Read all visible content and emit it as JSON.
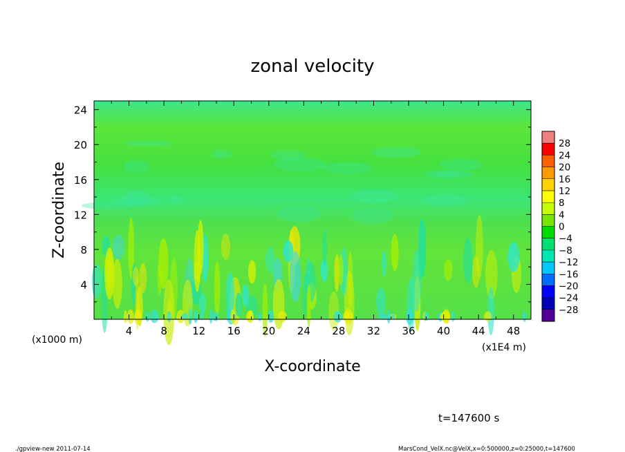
{
  "chart_data": {
    "type": "heatmap",
    "title": "zonal velocity",
    "xlabel": "X-coordinate",
    "ylabel": "Z-coordinate",
    "x_unit_left": "(x1000 m)",
    "x_unit_right": "(x1E4 m)",
    "x_ticks": [
      "4",
      "8",
      "12",
      "16",
      "20",
      "24",
      "28",
      "32",
      "36",
      "40",
      "44",
      "48"
    ],
    "y_ticks": [
      "4",
      "8",
      "12",
      "16",
      "20",
      "24"
    ],
    "xlim": [
      0,
      50
    ],
    "ylim": [
      0,
      25
    ],
    "colorbar": {
      "labels": [
        "28",
        "24",
        "20",
        "16",
        "12",
        "8",
        "4",
        "0",
        "−4",
        "−8",
        "−12",
        "−16",
        "−20",
        "−24",
        "−28"
      ],
      "colors": [
        "#f08080",
        "#ff0000",
        "#ff6000",
        "#ff9a00",
        "#ffd200",
        "#ffff00",
        "#c8ff00",
        "#78e600",
        "#00dc00",
        "#00e070",
        "#00e6b4",
        "#00c8ff",
        "#006eff",
        "#0000ff",
        "#0000b4",
        "#500096"
      ]
    },
    "grid": false
  },
  "annotations": {
    "time": "t=147600 s",
    "footer_left": "./gpview-new  2011-07-14",
    "footer_right": "MarsCond_VelX.nc@VelX,x=0:500000,z=0:25000,t=147600"
  }
}
